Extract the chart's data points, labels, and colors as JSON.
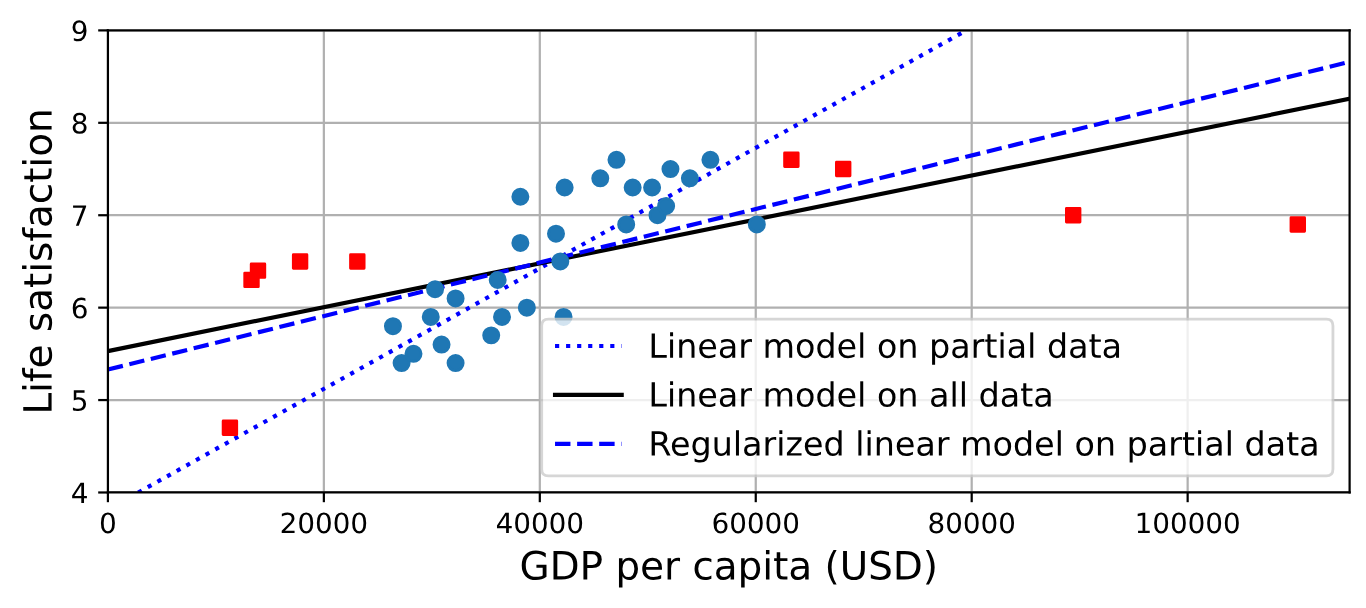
{
  "chart_data": {
    "type": "scatter",
    "xlabel": "GDP per capita (USD)",
    "ylabel": "Life satisfaction",
    "xlim": [
      0,
      115000
    ],
    "ylim": [
      4,
      9
    ],
    "xticks": [
      0,
      20000,
      40000,
      60000,
      80000,
      100000
    ],
    "yticks": [
      4,
      5,
      6,
      7,
      8,
      9
    ],
    "grid": true,
    "legend": "bottom right",
    "series": [
      {
        "marker": "circle",
        "color": "#1f77b4",
        "x": [
          26400,
          27200,
          28300,
          29900,
          30300,
          30900,
          32200,
          32200,
          35500,
          36100,
          36500,
          38200,
          38200,
          38800,
          41500,
          41900,
          42200,
          42300,
          45600,
          47100,
          48000,
          48600,
          50400,
          50900,
          51700,
          52100,
          53900,
          55800,
          60100
        ],
        "values": [
          5.8,
          5.4,
          5.5,
          5.9,
          6.2,
          5.6,
          6.1,
          5.4,
          5.7,
          6.3,
          5.9,
          7.2,
          6.7,
          6.0,
          6.8,
          6.5,
          5.9,
          7.3,
          7.4,
          7.6,
          6.9,
          7.3,
          7.3,
          7.0,
          7.1,
          7.5,
          7.4,
          7.6,
          6.9
        ]
      },
      {
        "marker": "square",
        "color": "#ff0000",
        "x": [
          11300,
          13300,
          13900,
          17800,
          23100,
          63300,
          68100,
          89400,
          110200
        ],
        "values": [
          4.7,
          6.3,
          6.4,
          6.5,
          6.5,
          7.6,
          7.5,
          7.0,
          6.9
        ]
      },
      {
        "type": "line",
        "name": "Linear model on partial data",
        "color": "#0000ff",
        "line_style": "dotted",
        "x": [
          2800,
          79500
        ],
        "values": [
          4.0,
          9.0
        ]
      },
      {
        "type": "line",
        "name": "Linear model on all data",
        "color": "#000000",
        "line_style": "solid",
        "x": [
          0,
          115000
        ],
        "values": [
          5.53,
          8.26
        ]
      },
      {
        "type": "line",
        "name": "Regularized linear model on partial data",
        "color": "#0000ff",
        "line_style": "dashed",
        "x": [
          0,
          115000
        ],
        "values": [
          5.33,
          8.66
        ]
      }
    ]
  }
}
